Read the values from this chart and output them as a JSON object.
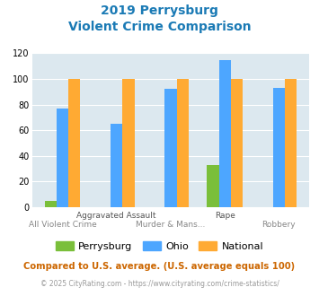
{
  "title_line1": "2019 Perrysburg",
  "title_line2": "Violent Crime Comparison",
  "categories": [
    "All Violent Crime",
    "Aggravated Assault",
    "Murder & Mans...",
    "Rape",
    "Robbery"
  ],
  "top_labels": [
    "",
    "Aggravated Assault",
    "",
    "Rape",
    ""
  ],
  "bottom_labels": [
    "All Violent Crime",
    "",
    "Murder & Mans...",
    "",
    "Robbery"
  ],
  "perrysburg": [
    5,
    0,
    0,
    33,
    0
  ],
  "ohio": [
    77,
    65,
    92,
    115,
    93
  ],
  "national": [
    100,
    100,
    100,
    100,
    100
  ],
  "perrysburg_color": "#7abf3a",
  "ohio_color": "#4da6ff",
  "national_color": "#ffaa33",
  "title_color": "#1a7ab5",
  "bg_color": "#dce8ef",
  "grid_color": "#ffffff",
  "ylim": [
    0,
    120
  ],
  "yticks": [
    0,
    20,
    40,
    60,
    80,
    100,
    120
  ],
  "bar_width": 0.22,
  "footnote1": "Compared to U.S. average. (U.S. average equals 100)",
  "footnote2": "© 2025 CityRating.com - https://www.cityrating.com/crime-statistics/",
  "footnote1_color": "#cc6600",
  "footnote2_color": "#999999",
  "legend_labels": [
    "Perrysburg",
    "Ohio",
    "National"
  ]
}
